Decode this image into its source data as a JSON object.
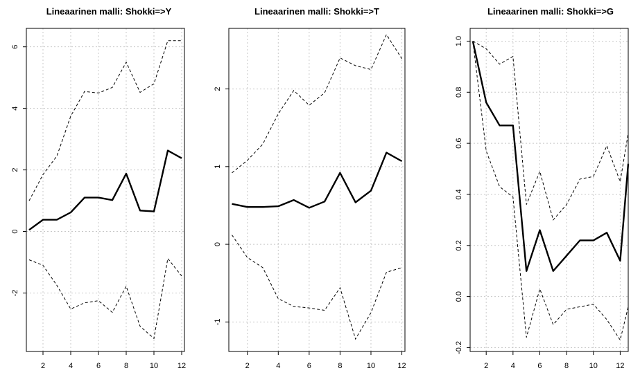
{
  "colors": {
    "line": "#000000",
    "grid": "#c8c8c8",
    "background": "#ffffff"
  },
  "chart_data": [
    {
      "type": "line",
      "title": "Lineaarinen malli: Shokki=>Y",
      "xlabel": "",
      "ylabel": "",
      "x": [
        1,
        2,
        3,
        4,
        5,
        6,
        7,
        8,
        9,
        10,
        11,
        12
      ],
      "xlim": [
        0.8,
        12.2
      ],
      "ylim": [
        -3.9,
        6.6
      ],
      "xticks": [
        2,
        4,
        6,
        8,
        10,
        12
      ],
      "yticks": [
        -2,
        0,
        2,
        4,
        6
      ],
      "grid": true,
      "series": [
        {
          "role": "estimate",
          "values": [
            0.05,
            0.38,
            0.38,
            0.62,
            1.1,
            1.1,
            1.02,
            1.88,
            0.68,
            0.65,
            2.63,
            2.38
          ]
        },
        {
          "role": "upper",
          "values": [
            1.0,
            1.85,
            2.45,
            3.75,
            4.55,
            4.5,
            4.68,
            5.5,
            4.52,
            4.8,
            6.2,
            6.2
          ]
        },
        {
          "role": "lower",
          "values": [
            -0.92,
            -1.1,
            -1.75,
            -2.52,
            -2.32,
            -2.25,
            -2.63,
            -1.78,
            -3.08,
            -3.48,
            -0.88,
            -1.45
          ]
        }
      ]
    },
    {
      "type": "line",
      "title": "Lineaarinen malli: Shokki=>T",
      "xlabel": "",
      "ylabel": "",
      "x": [
        1,
        2,
        3,
        4,
        5,
        6,
        7,
        8,
        9,
        10,
        11,
        12
      ],
      "xlim": [
        0.8,
        12.2
      ],
      "ylim": [
        -1.38,
        2.78
      ],
      "xticks": [
        2,
        4,
        6,
        8,
        10,
        12
      ],
      "yticks": [
        -1,
        0,
        1,
        2
      ],
      "grid": true,
      "series": [
        {
          "role": "estimate",
          "values": [
            0.52,
            0.48,
            0.48,
            0.49,
            0.57,
            0.47,
            0.55,
            0.92,
            0.54,
            0.69,
            1.18,
            1.07
          ]
        },
        {
          "role": "upper",
          "values": [
            0.92,
            1.08,
            1.29,
            1.68,
            1.98,
            1.79,
            1.95,
            2.4,
            2.3,
            2.25,
            2.7,
            2.39
          ]
        },
        {
          "role": "lower",
          "values": [
            0.12,
            -0.17,
            -0.3,
            -0.7,
            -0.8,
            -0.82,
            -0.85,
            -0.56,
            -1.22,
            -0.88,
            -0.36,
            -0.3
          ]
        }
      ]
    },
    {
      "type": "line",
      "title": "Lineaarinen malli: Shokki=>G",
      "xlabel": "",
      "ylabel": "",
      "x": [
        1,
        2,
        3,
        4,
        5,
        6,
        7,
        8,
        9,
        10,
        11,
        12,
        12.6
      ],
      "xlim": [
        0.8,
        12.6
      ],
      "ylim": [
        -0.215,
        1.05
      ],
      "xticks": [
        2,
        4,
        6,
        8,
        10,
        12
      ],
      "yticks": [
        -0.2,
        0.0,
        0.2,
        0.4,
        0.6,
        0.8,
        1.0
      ],
      "grid": true,
      "series": [
        {
          "role": "estimate",
          "values": [
            1.0,
            0.76,
            0.67,
            0.67,
            0.1,
            0.26,
            0.1,
            0.16,
            0.22,
            0.22,
            0.25,
            0.14,
            0.52
          ]
        },
        {
          "role": "upper",
          "values": [
            1.0,
            0.97,
            0.91,
            0.94,
            0.36,
            0.49,
            0.3,
            0.36,
            0.46,
            0.47,
            0.59,
            0.45,
            0.64
          ]
        },
        {
          "role": "lower",
          "values": [
            1.0,
            0.57,
            0.43,
            0.39,
            -0.16,
            0.03,
            -0.11,
            -0.05,
            -0.04,
            -0.03,
            -0.09,
            -0.17,
            -0.04
          ]
        }
      ]
    }
  ]
}
